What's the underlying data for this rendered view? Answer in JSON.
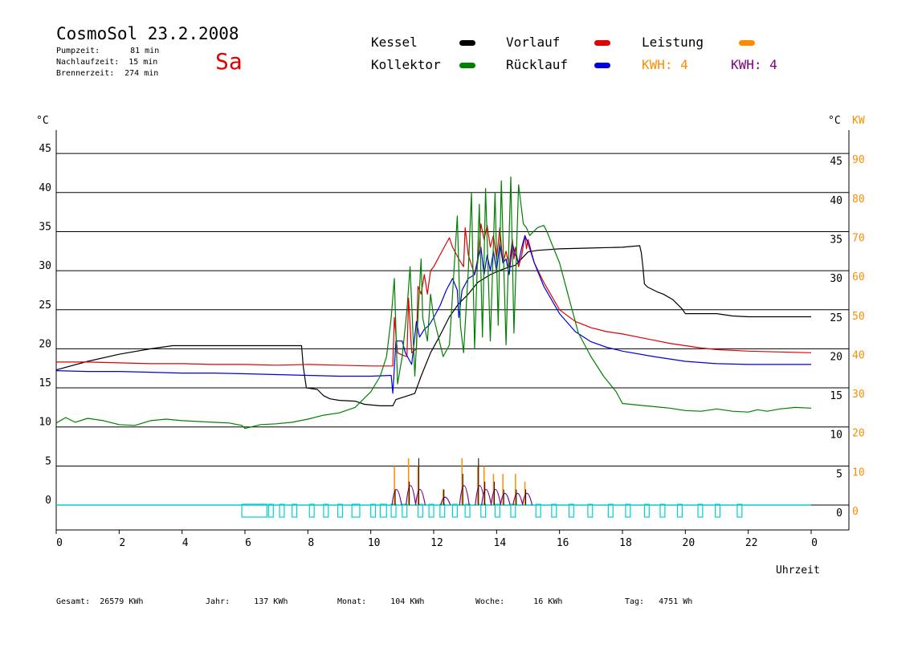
{
  "header": {
    "title": "CosmoSol 23.2.2008",
    "weekday": "Sa",
    "stats": [
      {
        "label": "Pumpzeit:",
        "value": "81 min"
      },
      {
        "label": "Nachlaufzeit:",
        "value": "15 min"
      },
      {
        "label": "Brennerzeit:",
        "value": "274 min"
      }
    ]
  },
  "legend": {
    "kessel": {
      "label": "Kessel",
      "color": "#000000"
    },
    "vorlauf": {
      "label": "Vorlauf",
      "color": "#e00000"
    },
    "leistung": {
      "label": "Leistung",
      "color": "#ff8c00"
    },
    "kollektor": {
      "label": "Kollektor",
      "color": "#008000"
    },
    "ruecklauf": {
      "label": "Rücklauf",
      "color": "#0000e0"
    },
    "kwh1": {
      "label": "KWH: 4",
      "color": "#ff8c00"
    },
    "kwh2": {
      "label": "KWH: 4",
      "color": "#800080"
    }
  },
  "axes": {
    "left_unit": "°C",
    "right_unit": "°C",
    "right_unit2": "KW",
    "xlabel": "Uhrzeit"
  },
  "footer": [
    {
      "label": "Gesamt:",
      "value": "26579 KWh"
    },
    {
      "label": "Jahr:",
      "value": "137 KWh"
    },
    {
      "label": "Monat:",
      "value": "104 KWh"
    },
    {
      "label": "Woche:",
      "value": "16 KWh"
    },
    {
      "label": "Tag:",
      "value": "4751 Wh"
    }
  ],
  "chart_data": {
    "type": "line",
    "x_ticks": [
      "0",
      "2",
      "4",
      "6",
      "8",
      "10",
      "12",
      "14",
      "16",
      "18",
      "20",
      "22",
      "0"
    ],
    "y_ticks_left": [
      "0",
      "5",
      "10",
      "15",
      "20",
      "25",
      "30",
      "35",
      "40",
      "45"
    ],
    "y_ticks_right": [
      "0",
      "5",
      "10",
      "15",
      "20",
      "25",
      "30",
      "35",
      "40",
      "45"
    ],
    "y2_ticks": [
      "0",
      "10",
      "20",
      "30",
      "40",
      "50",
      "60",
      "70",
      "80",
      "90"
    ],
    "xlim": [
      0,
      24
    ],
    "ylim": [
      0,
      45
    ],
    "y2lim": [
      0,
      90
    ],
    "grid": true,
    "series": [
      {
        "name": "Kessel",
        "color": "#000000",
        "x": [
          0,
          1,
          2,
          3,
          3.7,
          7.8,
          7.85,
          7.95,
          8.3,
          8.5,
          8.7,
          9.0,
          9.5,
          9.8,
          10.3,
          10.7,
          10.8,
          11.1,
          11.4,
          11.6,
          11.9,
          12.2,
          12.5,
          12.8,
          13.1,
          13.4,
          13.8,
          14.2,
          14.6,
          15.0,
          15.3,
          16.0,
          17.0,
          18.0,
          18.55,
          18.6,
          18.65,
          18.7,
          18.8,
          19.1,
          19.3,
          19.6,
          19.9,
          20.0,
          20.5,
          21.0,
          21.5,
          22.0,
          23.0,
          24.0
        ],
        "y": [
          17.3,
          18.4,
          19.3,
          20.0,
          20.4,
          20.4,
          17.8,
          15.0,
          14.8,
          14.0,
          13.6,
          13.4,
          13.3,
          12.9,
          12.7,
          12.7,
          13.5,
          13.9,
          14.3,
          16.5,
          19.5,
          21.7,
          24.1,
          25.8,
          27.0,
          28.5,
          29.5,
          30.2,
          30.7,
          32.4,
          32.6,
          32.8,
          32.9,
          33.0,
          33.2,
          32.3,
          30.5,
          28.3,
          27.9,
          27.3,
          27.0,
          26.3,
          25.1,
          24.5,
          24.5,
          24.5,
          24.2,
          24.1,
          24.1,
          24.1
        ]
      },
      {
        "name": "Vorlauf",
        "color": "#e00000",
        "x": [
          0,
          1,
          2,
          3,
          4,
          5,
          6,
          7,
          8,
          9,
          10,
          10.7,
          10.75,
          10.85,
          11.0,
          11.15,
          11.2,
          11.3,
          11.45,
          11.5,
          11.6,
          11.7,
          11.8,
          11.9,
          12.0,
          12.2,
          12.4,
          12.5,
          12.6,
          12.8,
          12.95,
          13.0,
          13.1,
          13.3,
          13.4,
          13.5,
          13.6,
          13.7,
          13.8,
          13.9,
          14.0,
          14.1,
          14.2,
          14.3,
          14.4,
          14.5,
          14.55,
          14.6,
          14.7,
          14.8,
          14.9,
          14.95,
          15.0,
          15.2,
          15.5,
          16.0,
          16.5,
          17.0,
          17.5,
          18.0,
          18.5,
          19.0,
          19.5,
          20.0,
          20.5,
          21.0,
          22.0,
          23.0,
          24.0
        ],
        "y": [
          18.3,
          18.3,
          18.2,
          18.1,
          18.1,
          18.0,
          18.0,
          17.9,
          18.0,
          17.9,
          17.8,
          17.8,
          24.0,
          19.5,
          19.2,
          19.0,
          26.5,
          19.5,
          20.0,
          28.0,
          27.0,
          29.5,
          27.0,
          30.0,
          30.5,
          32.0,
          33.5,
          34.2,
          33.0,
          31.5,
          30.5,
          35.5,
          32.0,
          29.5,
          31.0,
          36.0,
          34.0,
          35.8,
          33.0,
          34.5,
          31.5,
          35.5,
          31.0,
          32.5,
          30.5,
          34.0,
          31.5,
          33.0,
          30.5,
          32.0,
          34.5,
          32.8,
          34.0,
          31.0,
          28.5,
          25.0,
          23.5,
          22.7,
          22.2,
          21.9,
          21.5,
          21.1,
          20.7,
          20.4,
          20.1,
          19.9,
          19.7,
          19.6,
          19.5
        ]
      },
      {
        "name": "Rücklauf",
        "color": "#0000e0",
        "x": [
          0,
          1,
          2,
          3,
          4,
          5,
          6,
          7,
          8,
          9,
          10,
          10.65,
          10.7,
          10.8,
          11.0,
          11.1,
          11.3,
          11.45,
          11.55,
          11.7,
          11.85,
          12.0,
          12.2,
          12.4,
          12.6,
          12.75,
          12.8,
          12.9,
          13.1,
          13.3,
          13.4,
          13.5,
          13.6,
          13.7,
          13.8,
          13.9,
          14.0,
          14.1,
          14.2,
          14.3,
          14.4,
          14.5,
          14.6,
          14.7,
          14.8,
          14.9,
          15.0,
          15.2,
          15.5,
          16.0,
          16.5,
          17.0,
          17.5,
          18.0,
          19.0,
          20.0,
          21.0,
          22.0,
          23.0,
          24.0
        ],
        "y": [
          17.2,
          17.1,
          17.1,
          17.0,
          16.9,
          16.9,
          16.8,
          16.7,
          16.6,
          16.5,
          16.5,
          16.6,
          14.3,
          21.0,
          21.0,
          19.5,
          18.0,
          23.5,
          21.5,
          22.5,
          23.0,
          24.0,
          25.5,
          27.5,
          29.0,
          27.5,
          24.0,
          27.5,
          29.0,
          29.5,
          31.5,
          33.0,
          29.5,
          32.0,
          30.0,
          32.5,
          30.0,
          33.5,
          31.0,
          31.5,
          29.5,
          33.5,
          32.0,
          31.0,
          33.0,
          34.5,
          33.5,
          31.0,
          28.0,
          24.5,
          22.2,
          20.9,
          20.2,
          19.7,
          19.0,
          18.4,
          18.1,
          18.0,
          18.0,
          18.0
        ]
      },
      {
        "name": "Kollektor",
        "color": "#008000",
        "x": [
          0,
          0.3,
          0.6,
          1,
          1.5,
          2,
          2.5,
          3,
          3.5,
          4,
          4.5,
          5,
          5.5,
          5.9,
          6.0,
          6.5,
          7,
          7.5,
          8,
          8.5,
          9,
          9.5,
          10,
          10.3,
          10.5,
          10.65,
          10.75,
          10.85,
          11.0,
          11.15,
          11.25,
          11.4,
          11.6,
          11.65,
          11.8,
          11.9,
          12.0,
          12.3,
          12.5,
          12.6,
          12.75,
          12.85,
          12.95,
          13.1,
          13.2,
          13.3,
          13.45,
          13.55,
          13.65,
          13.8,
          13.95,
          14.05,
          14.15,
          14.3,
          14.45,
          14.55,
          14.7,
          14.85,
          14.95,
          15.05,
          15.3,
          15.5,
          15.6,
          15.8,
          16.0,
          16.3,
          16.6,
          17.0,
          17.4,
          17.8,
          18.0,
          18.5,
          19,
          19.5,
          20,
          20.5,
          21,
          21.5,
          22,
          22.3,
          22.6,
          23,
          23.5,
          24.0
        ],
        "y": [
          10.5,
          11.2,
          10.6,
          11.1,
          10.8,
          10.3,
          10.2,
          10.8,
          11.0,
          10.8,
          10.7,
          10.6,
          10.5,
          10.2,
          9.8,
          10.3,
          10.4,
          10.6,
          11.0,
          11.5,
          11.8,
          12.5,
          14.5,
          16.5,
          19.0,
          24.0,
          29.0,
          15.5,
          19.0,
          25.0,
          30.5,
          16.5,
          31.5,
          24.0,
          21.0,
          27.0,
          24.0,
          19.0,
          20.5,
          27.0,
          37.0,
          23.0,
          19.5,
          30.0,
          40.0,
          20.0,
          38.5,
          21.5,
          40.5,
          21.0,
          40.0,
          23.0,
          41.5,
          20.5,
          42.0,
          22.0,
          41.0,
          36.0,
          35.5,
          34.5,
          35.5,
          35.8,
          35.0,
          33.0,
          31.0,
          26.5,
          22.0,
          19.0,
          16.5,
          14.5,
          13.0,
          12.8,
          12.6,
          12.4,
          12.1,
          12.0,
          12.3,
          12.0,
          11.9,
          12.2,
          12.0,
          12.3,
          12.5,
          12.4
        ]
      }
    ],
    "power_spikes": {
      "x": [
        10.75,
        11.2,
        11.5,
        12.3,
        12.9,
        13.4,
        13.6,
        13.9,
        14.2,
        14.6,
        14.9
      ],
      "leistung": [
        5,
        6,
        5,
        2,
        6,
        5,
        5,
        4,
        4,
        4,
        3
      ],
      "kwh": [
        4,
        5,
        4,
        2,
        5,
        5,
        4,
        4,
        3,
        3,
        3
      ],
      "kessel": [
        2,
        3,
        6,
        2,
        4,
        6,
        3,
        3,
        2,
        2,
        2
      ]
    },
    "burner_pulses": {
      "start": [
        5.9,
        6.75,
        7.1,
        7.5,
        8.05,
        8.5,
        8.95,
        9.4,
        10.0,
        10.3,
        10.65,
        11.0,
        11.5,
        11.85,
        12.2,
        12.6,
        13.0,
        13.5,
        13.95,
        14.45,
        15.25,
        15.75,
        16.3,
        16.9,
        17.55,
        18.1,
        18.7,
        19.2,
        19.75,
        20.4,
        20.95,
        21.65
      ],
      "end": [
        6.7,
        6.9,
        7.25,
        7.65,
        8.2,
        8.65,
        9.1,
        9.65,
        10.15,
        10.5,
        10.8,
        11.15,
        11.65,
        12.0,
        12.35,
        12.75,
        13.15,
        13.65,
        14.1,
        14.6,
        15.4,
        15.9,
        16.45,
        17.05,
        17.7,
        18.25,
        18.85,
        19.35,
        19.9,
        20.55,
        21.1,
        21.8
      ]
    }
  }
}
